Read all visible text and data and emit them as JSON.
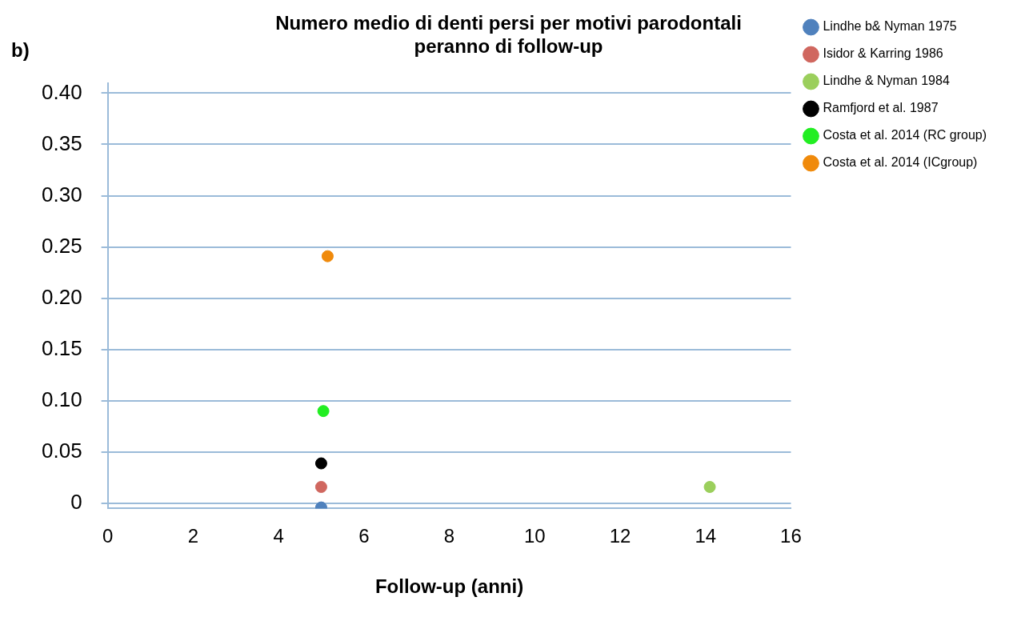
{
  "chart_data": {
    "type": "scatter",
    "title": "Numero medio di denti persi per motivi parodontali\nperanno di follow-up",
    "xlabel": "Follow-up (anni)",
    "annotations": [
      "b)"
    ],
    "xlim": [
      0,
      16
    ],
    "xticks": [
      0,
      2,
      4,
      6,
      8,
      10,
      12,
      14,
      16
    ],
    "ylim": [
      -0.005,
      0.41
    ],
    "yticks": [
      {
        "value": 0,
        "label": "0"
      },
      {
        "value": 0.05,
        "label": "0.05"
      },
      {
        "value": 0.1,
        "label": "0.10"
      },
      {
        "value": 0.15,
        "label": "0.15"
      },
      {
        "value": 0.2,
        "label": "0.20"
      },
      {
        "value": 0.25,
        "label": "0.25"
      },
      {
        "value": 0.3,
        "label": "0.30"
      },
      {
        "value": 0.35,
        "label": "0.35"
      },
      {
        "value": 0.4,
        "label": "0.40"
      }
    ],
    "series": [
      {
        "name": "Lindhe b& Nyman 1975",
        "color": "#4f81bd",
        "x": [
          5
        ],
        "values": [
          -0.004
        ]
      },
      {
        "name": "Isidor & Karring 1986",
        "color": "#d0675f",
        "x": [
          5
        ],
        "values": [
          0.016
        ]
      },
      {
        "name": "Lindhe & Nyman 1984",
        "color": "#9bcf5c",
        "x": [
          14.1
        ],
        "values": [
          0.016
        ]
      },
      {
        "name": "Ramfjord et al. 1987",
        "color": "#000000",
        "x": [
          5
        ],
        "values": [
          0.039
        ]
      },
      {
        "name": "Costa et al. 2014 (RC group)",
        "color": "#22ee22",
        "x": [
          5.05
        ],
        "values": [
          0.09
        ]
      },
      {
        "name": "Costa et al. 2014 (ICgroup)",
        "color": "#f08a0b",
        "x": [
          5.15
        ],
        "values": [
          0.241
        ]
      }
    ],
    "grid": "y",
    "legend": "top right",
    "marker": "circle"
  }
}
